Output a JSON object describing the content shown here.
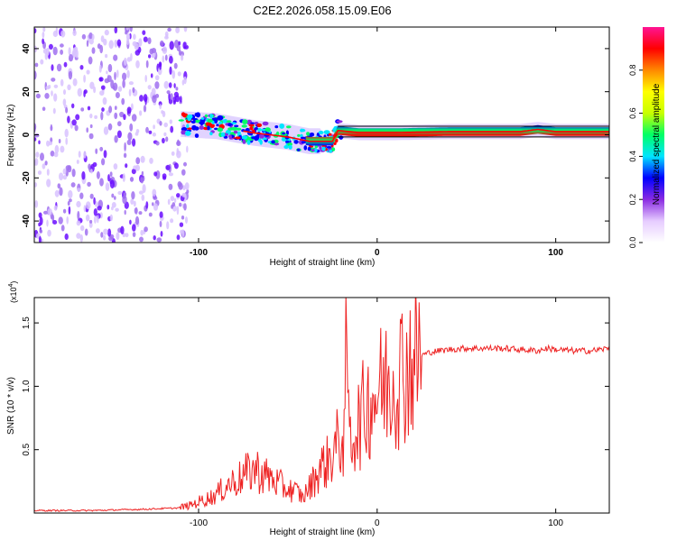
{
  "title": "C2E2.2026.058.15.09.E06",
  "colors": {
    "frame": "#000000",
    "snr_line": "#ee2222",
    "scatter": "#6a0dff",
    "colormap": [
      "#ffffff",
      "#e6ccff",
      "#8a2be2",
      "#0000ff",
      "#00e5ff",
      "#00ff66",
      "#c8ff00",
      "#ffff00",
      "#ff8800",
      "#ff0000",
      "#ff1493"
    ]
  },
  "chart_data": [
    {
      "type": "heatmap",
      "name": "spectrogram",
      "xlabel": "Height of straight line (km)",
      "ylabel": "Frequency (Hz)",
      "xlim": [
        -192,
        130
      ],
      "ylim": [
        -50,
        50
      ],
      "xticks": [
        -100,
        0,
        100
      ],
      "xtick_labels": [
        "-100",
        "0",
        "100"
      ],
      "yticks": [
        -40,
        -20,
        0,
        20,
        40
      ],
      "ytick_labels": [
        "-40",
        "-20",
        "0",
        "20",
        "40"
      ],
      "noise_region_x": [
        -192,
        -108
      ],
      "signal_band": {
        "x_start": -110,
        "center_freq": [
          [
            -110,
            5
          ],
          [
            -90,
            4
          ],
          [
            -70,
            1
          ],
          [
            -50,
            -1
          ],
          [
            -38,
            -3
          ],
          [
            -25,
            -3
          ],
          [
            -22,
            2
          ],
          [
            -10,
            1
          ],
          [
            10,
            1
          ],
          [
            40,
            1.5
          ],
          [
            80,
            1.5
          ],
          [
            90,
            2.5
          ],
          [
            100,
            1.5
          ],
          [
            130,
            1.5
          ]
        ],
        "half_width_hz": 2
      },
      "colorbar": {
        "label": "Normalized spectral amplitude",
        "range": [
          0,
          1
        ],
        "ticks": [
          0.0,
          0.2,
          0.4,
          0.6,
          0.8
        ],
        "tick_labels": [
          "0.0",
          "0.2",
          "0.4",
          "0.6",
          "0.8"
        ]
      }
    },
    {
      "type": "line",
      "name": "snr",
      "xlabel": "Height of straight line (km)",
      "ylabel": "SNR (10 * v/v)",
      "scale_label": "(x10",
      "scale_exponent": "4",
      "xlim": [
        -192,
        130
      ],
      "ylim": [
        0,
        1.7
      ],
      "xticks": [
        -100,
        0,
        100
      ],
      "xtick_labels": [
        "-100",
        "0",
        "100"
      ],
      "yticks": [
        0.5,
        1.0,
        1.5
      ],
      "ytick_labels": [
        "0.5",
        "1.0",
        "1.5"
      ],
      "series": [
        {
          "name": "SNR",
          "x": [
            -192,
            -160,
            -130,
            -112,
            -105,
            -98,
            -92,
            -88,
            -84,
            -80,
            -76,
            -72,
            -68,
            -64,
            -60,
            -56,
            -52,
            -48,
            -44,
            -42,
            -40,
            -38,
            -36,
            -34,
            -32,
            -30,
            -28,
            -26,
            -24,
            -22,
            -20,
            -18,
            -17,
            -16,
            -14,
            -12,
            -10,
            -8,
            -6,
            -4,
            -2,
            0,
            2,
            4,
            6,
            8,
            10,
            12,
            14,
            16,
            18,
            20,
            24,
            30,
            40,
            50,
            60,
            70,
            80,
            90,
            95,
            100,
            110,
            120,
            130
          ],
          "y": [
            0.02,
            0.02,
            0.03,
            0.04,
            0.06,
            0.1,
            0.13,
            0.17,
            0.22,
            0.25,
            0.28,
            0.32,
            0.35,
            0.3,
            0.28,
            0.24,
            0.2,
            0.18,
            0.16,
            0.12,
            0.16,
            0.2,
            0.25,
            0.3,
            0.35,
            0.38,
            0.4,
            0.45,
            0.5,
            0.55,
            0.6,
            0.55,
            1.7,
            0.65,
            0.6,
            0.68,
            0.72,
            0.78,
            0.85,
            0.9,
            0.92,
            0.95,
            0.98,
            1.0,
            1.04,
            1.06,
            1.08,
            1.1,
            1.14,
            1.15,
            1.18,
            1.2,
            1.24,
            1.27,
            1.29,
            1.3,
            1.3,
            1.3,
            1.29,
            1.28,
            1.3,
            1.29,
            1.28,
            1.28,
            1.3
          ]
        }
      ]
    }
  ]
}
